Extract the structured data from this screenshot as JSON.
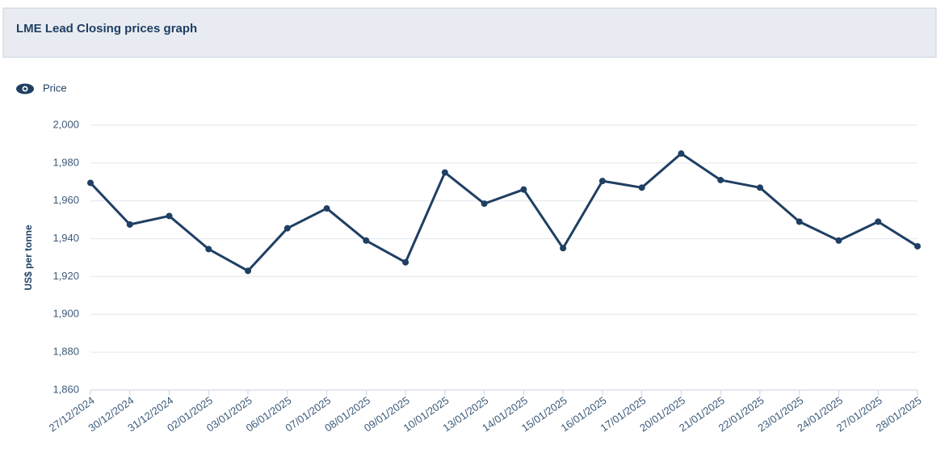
{
  "chart_data": {
    "type": "line",
    "title": "LME Lead Closing prices graph",
    "y_label": "US$ per tonne",
    "x": [
      "27/12/2024",
      "30/12/2024",
      "31/12/2024",
      "02/01/2025",
      "03/01/2025",
      "06/01/2025",
      "07/01/2025",
      "08/01/2025",
      "09/01/2025",
      "10/01/2025",
      "13/01/2025",
      "14/01/2025",
      "15/01/2025",
      "16/01/2025",
      "17/01/2025",
      "20/01/2025",
      "21/01/2025",
      "22/01/2025",
      "23/01/2025",
      "24/01/2025",
      "27/01/2025",
      "28/01/2025"
    ],
    "series": [
      {
        "name": "Price",
        "color": "#1f3f63",
        "values": [
          1969.5,
          1947.5,
          1952,
          1934.5,
          1923,
          1945.5,
          1956,
          1939,
          1927.5,
          1975,
          1958.5,
          1966,
          1935,
          1970.5,
          1967,
          1985,
          1971,
          1967,
          1949,
          1939,
          1949,
          1936
        ]
      }
    ],
    "ylim": [
      1860,
      2000
    ],
    "yticks": [
      {
        "value": 1860,
        "label": "1,860"
      },
      {
        "value": 1880,
        "label": "1,880"
      },
      {
        "value": 1900,
        "label": "1,900"
      },
      {
        "value": 1920,
        "label": "1,920"
      },
      {
        "value": 1940,
        "label": "1,940"
      },
      {
        "value": 1960,
        "label": "1,960"
      },
      {
        "value": 1980,
        "label": "1,980"
      },
      {
        "value": 2000,
        "label": "2,000"
      }
    ],
    "grid": true,
    "legend": "top-left"
  }
}
